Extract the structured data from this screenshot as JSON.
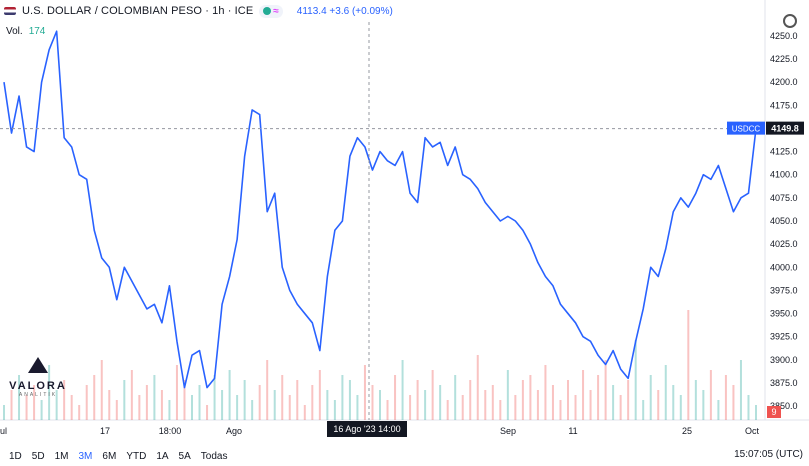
{
  "header": {
    "title": "U.S. DOLLAR / COLOMBIAN PESO · 1h · ICE",
    "price_line": "4113.4 +3.6 (+0.09%)",
    "approx_symbol": "≈"
  },
  "volume": {
    "label": "Vol.",
    "value": "174"
  },
  "watermark": {
    "brand": "VALORA",
    "sub": "ANALITIK"
  },
  "ranges": [
    "1D",
    "5D",
    "1M",
    "3M",
    "6M",
    "YTD",
    "1A",
    "5A",
    "Todas"
  ],
  "active_range": "3M",
  "clock": "15:07:05 (UTC)",
  "crosshair_label": "16 Ago '23   14:00",
  "symbol_tag": "USDCC",
  "last_price_label": "4149.8",
  "volume_badge": "9",
  "colors": {
    "line": "#2962ff",
    "up": "#26a69a",
    "down": "#ef5350",
    "accent": "#2962ff"
  },
  "chart_data": {
    "type": "line",
    "ylim": [
      3835,
      4265
    ],
    "y_ticks": [
      3850,
      3875,
      3900,
      3925,
      3950,
      3975,
      4000,
      4025,
      4050,
      4075,
      4100,
      4125,
      4150,
      4175,
      4200,
      4225,
      4250
    ],
    "x_tick_labels": [
      "ul",
      "17",
      "18:00",
      "Ago",
      "Sep",
      "11",
      "25",
      "Oct"
    ],
    "series": [
      {
        "values": [
          4200,
          4145,
          4185,
          4130,
          4125,
          4200,
          4235,
          4255,
          4140,
          4130,
          4100,
          4095,
          4040,
          4010,
          4000,
          3965,
          4000,
          3985,
          3970,
          3955,
          3960,
          3940,
          3980,
          3920,
          3870,
          3905,
          3910,
          3870,
          3880,
          3960,
          3990,
          4030,
          4120,
          4170,
          4165,
          4060,
          4080,
          4000,
          3975,
          3960,
          3950,
          3940,
          3910,
          3990,
          4040,
          4050,
          4120,
          4140,
          4130,
          4105,
          4125,
          4115,
          4110,
          4125,
          4080,
          4070,
          4140,
          4130,
          4135,
          4110,
          4130,
          4100,
          4095,
          4085,
          4070,
          4060,
          4050,
          4055,
          4050,
          4040,
          4025,
          4005,
          3990,
          3980,
          3960,
          3950,
          3940,
          3925,
          3920,
          3905,
          3895,
          3910,
          3890,
          3880,
          3920,
          3955,
          4000,
          3990,
          4020,
          4060,
          4075,
          4065,
          4080,
          4100,
          4095,
          4110,
          4085,
          4060,
          4075,
          4080,
          4150
        ]
      }
    ],
    "volumes": [
      3,
      6,
      9,
      5,
      7,
      4,
      11,
      6,
      8,
      5,
      3,
      7,
      9,
      12,
      6,
      4,
      8,
      10,
      5,
      7,
      9,
      6,
      4,
      11,
      8,
      5,
      7,
      3,
      9,
      6,
      10,
      5,
      8,
      4,
      7,
      12,
      6,
      9,
      5,
      8,
      3,
      7,
      10,
      6,
      4,
      9,
      8,
      5,
      11,
      7,
      6,
      4,
      9,
      12,
      5,
      8,
      6,
      10,
      7,
      4,
      9,
      5,
      8,
      13,
      6,
      7,
      4,
      10,
      5,
      8,
      9,
      6,
      11,
      7,
      4,
      8,
      5,
      10,
      6,
      9,
      12,
      7,
      5,
      8,
      16,
      4,
      9,
      6,
      11,
      7,
      5,
      22,
      8,
      6,
      10,
      4,
      9,
      7,
      12,
      5,
      3
    ]
  }
}
